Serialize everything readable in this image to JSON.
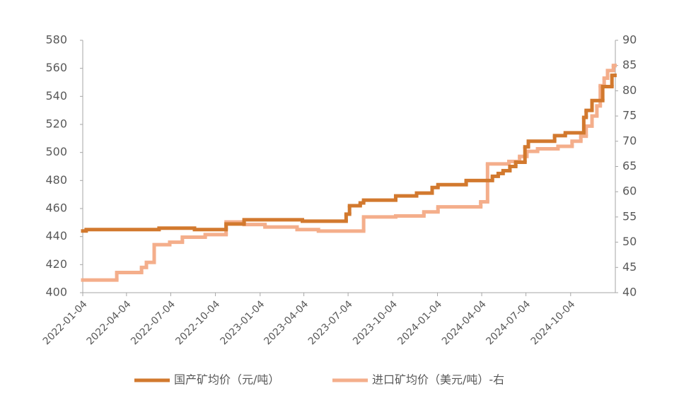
{
  "chart_data": {
    "type": "step-line",
    "xlim": [
      "2022-01-04",
      "2025-01-04"
    ],
    "xticks": [
      "2022-01-04",
      "2022-04-04",
      "2022-07-04",
      "2022-10-04",
      "2023-01-04",
      "2023-04-04",
      "2023-07-04",
      "2023-10-04",
      "2024-01-04",
      "2024-04-04",
      "2024-07-04",
      "2024-10-04"
    ],
    "ylim": [
      400,
      580
    ],
    "yticks": [
      400,
      420,
      440,
      460,
      480,
      500,
      520,
      540,
      560,
      580
    ],
    "y2lim": [
      40,
      90
    ],
    "y2ticks": [
      40,
      45,
      50,
      55,
      60,
      65,
      70,
      75,
      80,
      85,
      90
    ],
    "legend": "bottom",
    "series": [
      {
        "name": "国产矿均价（元/吨）",
        "color": "#d2792e",
        "x": [
          "2022-01-04",
          "2022-01-11",
          "2022-06-10",
          "2022-08-22",
          "2022-10-26",
          "2022-12-02",
          "2023-04-01",
          "2023-06-30",
          "2023-07-07",
          "2023-07-29",
          "2023-08-05",
          "2023-10-10",
          "2023-11-22",
          "2023-12-24",
          "2024-01-05",
          "2024-03-03",
          "2024-04-26",
          "2024-05-08",
          "2024-05-18",
          "2024-06-01",
          "2024-06-13",
          "2024-07-02",
          "2024-07-09",
          "2024-09-01",
          "2024-09-23",
          "2024-10-31",
          "2024-11-05",
          "2024-11-17",
          "2024-12-09",
          "2024-12-28",
          "2025-01-03"
        ],
        "values": [
          444,
          445,
          446,
          445,
          449,
          452,
          451,
          456,
          462,
          464,
          466,
          469,
          471,
          475,
          477,
          480,
          483,
          485,
          487,
          490,
          493,
          504,
          508,
          512,
          514,
          525,
          530,
          537,
          547,
          555,
          555
        ]
      },
      {
        "name": "进口矿均价（美元/吨）-右",
        "color": "#f4ae8b",
        "axis": "y2",
        "x": [
          "2022-01-04",
          "2022-03-15",
          "2022-05-05",
          "2022-05-15",
          "2022-05-31",
          "2022-07-02",
          "2022-07-28",
          "2022-09-13",
          "2022-10-26",
          "2022-12-02",
          "2023-01-14",
          "2023-03-21",
          "2023-05-04",
          "2023-08-05",
          "2023-10-10",
          "2023-12-07",
          "2024-01-05",
          "2024-04-02",
          "2024-04-16",
          "2024-05-30",
          "2024-06-21",
          "2024-07-06",
          "2024-07-28",
          "2024-09-08",
          "2024-10-07",
          "2024-10-25",
          "2024-11-05",
          "2024-11-17",
          "2024-11-27",
          "2024-12-04",
          "2024-12-12",
          "2024-12-19",
          "2024-12-31",
          "2025-01-03"
        ],
        "values": [
          42.5,
          44,
          45,
          46,
          49.5,
          50,
          51,
          51.5,
          54,
          53.5,
          53,
          52.5,
          52.2,
          55,
          55.2,
          56,
          57,
          58,
          65.5,
          66,
          67,
          68,
          68.5,
          69,
          70,
          71,
          73,
          75,
          77,
          81,
          82.5,
          84,
          85,
          85
        ]
      }
    ]
  }
}
